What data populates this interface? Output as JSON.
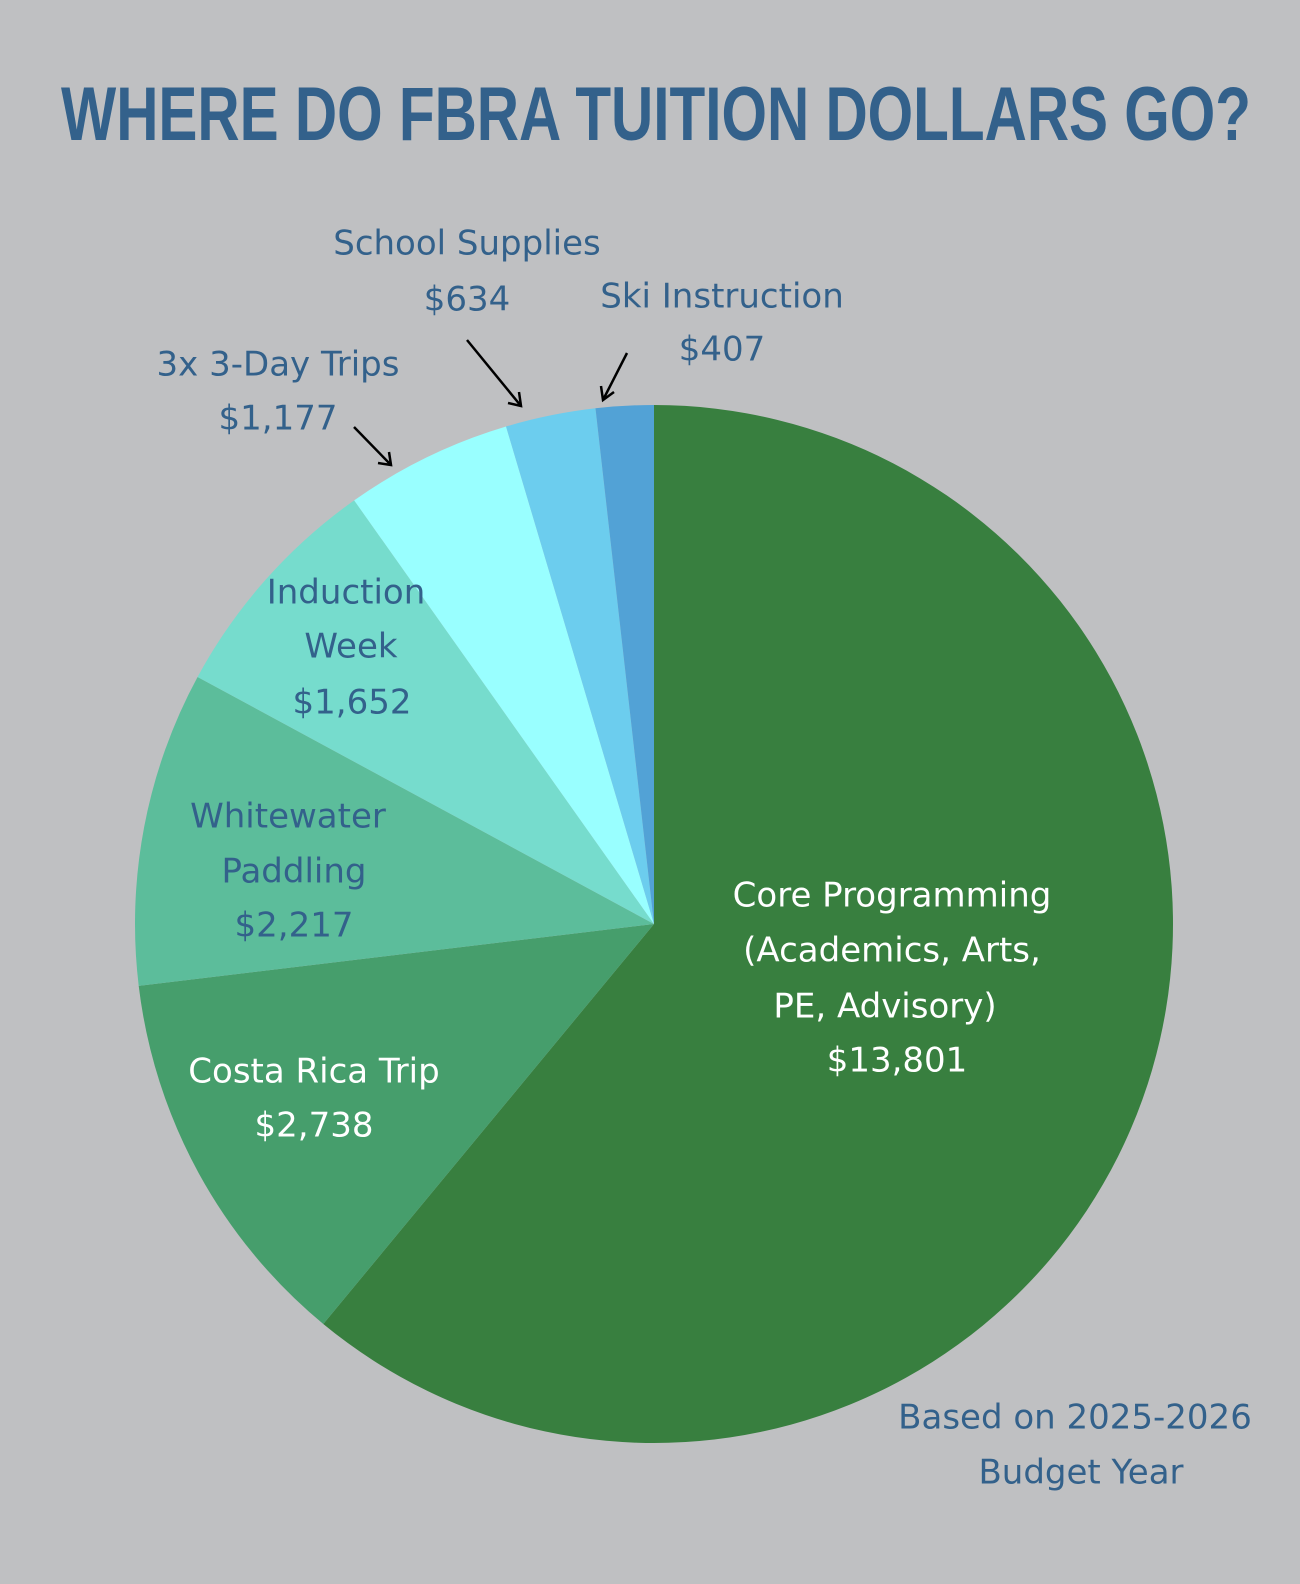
{
  "chart_data": {
    "type": "pie",
    "title": "WHERE DO FBRA TUITION DOLLARS GO?",
    "start_angle": "12 o'clock",
    "direction": "clockwise",
    "slices": [
      {
        "lines": [
          "Core Programming",
          "(Academics, Arts,",
          "PE, Advisory)",
          "$13,801"
        ],
        "value": 13801,
        "color": "#387f3f"
      },
      {
        "lines": [
          "Costa Rica Trip",
          "$2,738"
        ],
        "value": 2738,
        "color": "#469e6c"
      },
      {
        "lines": [
          "Whitewater",
          "Paddling",
          "$2,217"
        ],
        "value": 2217,
        "color": "#5cbd9b"
      },
      {
        "lines": [
          "Induction",
          "Week",
          "$1,652"
        ],
        "value": 1652,
        "color": "#76dccd"
      },
      {
        "lines": [
          "3x 3-Day Trips",
          "$1,177"
        ],
        "value": 1177,
        "color": "#99ffff"
      },
      {
        "lines": [
          "School Supplies",
          "$634"
        ],
        "value": 634,
        "color": "#6ccdee"
      },
      {
        "lines": [
          "Ski Instruction",
          "$407"
        ],
        "value": 407,
        "color": "#52a2d6"
      }
    ],
    "footnote": [
      "Based on 2025-2026",
      "Budget Year"
    ]
  },
  "colors": {
    "background": "#bfc0c2",
    "text": "#33618b"
  }
}
